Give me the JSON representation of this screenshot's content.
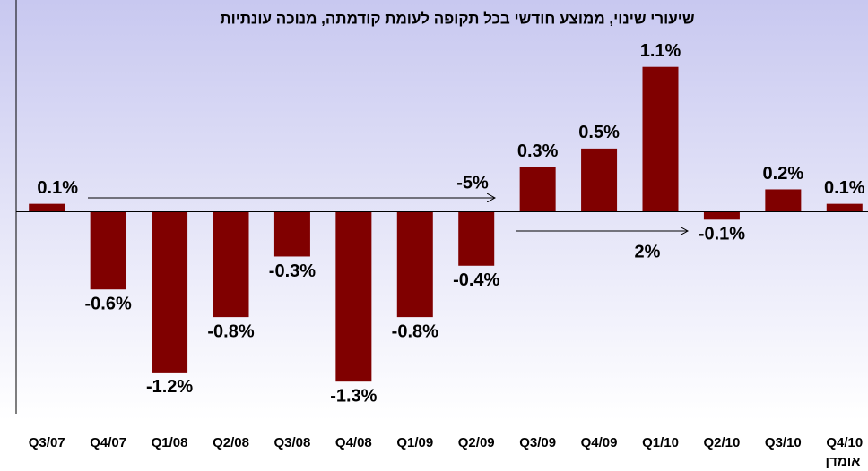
{
  "chart_data": {
    "type": "bar",
    "title": "שיעורי שינוי, ממוצע חודשי בכל תקופה לעומת קודמתה, מנוכה עונתיות",
    "categories": [
      "Q3/07",
      "Q4/07",
      "Q1/08",
      "Q2/08",
      "Q3/08",
      "Q4/08",
      "Q1/09",
      "Q2/09",
      "Q3/09",
      "Q4/09",
      "Q1/10",
      "Q2/10",
      "Q3/10",
      "Q4/10"
    ],
    "values": [
      0.06,
      -0.59,
      -1.22,
      -0.8,
      -0.34,
      -1.29,
      -0.8,
      -0.41,
      0.34,
      0.48,
      1.1,
      -0.06,
      0.17,
      0.06
    ],
    "value_labels": [
      "0.1%",
      "-0.6%",
      "-1.2%",
      "-0.8%",
      "-0.3%",
      "-1.3%",
      "-0.8%",
      "-0.4%",
      "0.3%",
      "0.5%",
      "1.1%",
      "-0.1%",
      "0.2%",
      "0.1%"
    ],
    "color": "#800000",
    "ylim": [
      -1.52,
      1.54
    ],
    "annotations": [
      "-5%",
      "2%"
    ],
    "note": "אומדן"
  }
}
